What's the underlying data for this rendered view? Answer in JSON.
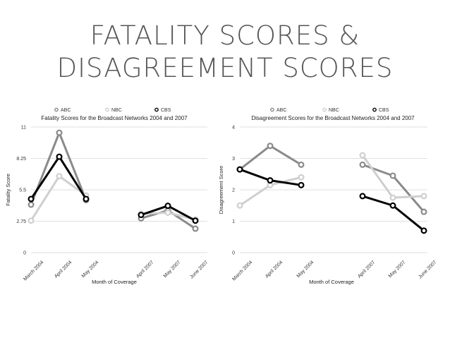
{
  "slide": {
    "title_line1": "FATALITY SCORES &",
    "title_line2": "DISAGREEMENT SCORES"
  },
  "colors": {
    "ABC": "#8a8a8a",
    "NBC": "#cfcfcf",
    "CBS": "#000000",
    "grid": "#d4d4d4"
  },
  "chart_data": [
    {
      "type": "line",
      "title": "Fatality Scores for the Broadcast Networks 2004 and 2007",
      "xlabel": "Month of Coverage",
      "ylabel": "Fatality Score",
      "categories": [
        "March 2004",
        "April 2004",
        "May 2004",
        "",
        "",
        "April 2007",
        "May 2007",
        "June 2007"
      ],
      "tick_labels": [
        "March 2004",
        "April 2004",
        "May 2004",
        "April 2007",
        "May 2007",
        "June 2007"
      ],
      "yticks": [
        "0",
        "2.75",
        "5.5",
        "8.25",
        "11"
      ],
      "ylim": [
        0,
        11
      ],
      "grid": true,
      "legend_position": "top",
      "series": [
        {
          "name": "ABC",
          "values": [
            4.2,
            10.5,
            4.6,
            null,
            null,
            3.0,
            3.7,
            2.1
          ]
        },
        {
          "name": "NBC",
          "values": [
            2.8,
            6.7,
            5.0,
            null,
            null,
            3.4,
            3.5,
            2.9
          ]
        },
        {
          "name": "CBS",
          "values": [
            4.7,
            8.4,
            4.7,
            null,
            null,
            3.3,
            4.1,
            2.8
          ]
        }
      ]
    },
    {
      "type": "line",
      "title": "Disagreement Scores for the Broadcast Networks 2004 and 2007",
      "xlabel": "Month of Coverage",
      "ylabel": "Disagreement Score",
      "categories": [
        "March 2004",
        "April 2004",
        "May 2004",
        "",
        "",
        "April 2007",
        "May 2007",
        "June 2007"
      ],
      "tick_labels": [
        "March 2004",
        "April 2004",
        "May 2004",
        "April 2007",
        "May 2007",
        "June 2007"
      ],
      "yticks": [
        "0",
        "1",
        "2",
        "3",
        "4"
      ],
      "ylim": [
        0,
        4
      ],
      "grid": true,
      "legend_position": "top",
      "series": [
        {
          "name": "ABC",
          "values": [
            2.65,
            3.4,
            2.8,
            null,
            null,
            2.8,
            2.45,
            1.3
          ]
        },
        {
          "name": "NBC",
          "values": [
            1.5,
            2.15,
            2.4,
            null,
            null,
            3.1,
            1.75,
            1.8
          ]
        },
        {
          "name": "CBS",
          "values": [
            2.65,
            2.3,
            2.15,
            null,
            null,
            1.8,
            1.5,
            0.7
          ]
        }
      ]
    }
  ]
}
